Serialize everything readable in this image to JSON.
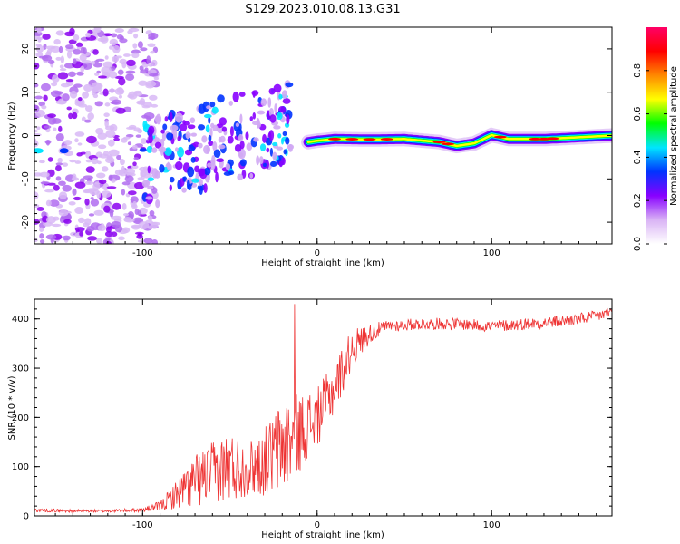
{
  "title": "S129.2023.010.08.13.G31",
  "chart_data": [
    {
      "type": "heatmap",
      "xlabel": "Height of straight line (km)",
      "ylabel": "Frequency (Hz)",
      "xlim": [
        -162,
        169
      ],
      "ylim": [
        -25,
        25
      ],
      "x_ticks": [
        -100,
        0,
        100
      ],
      "y_ticks": [
        -20,
        -10,
        0,
        10,
        20
      ],
      "colorbar": {
        "label": "Normalized spectral amplitude",
        "range": [
          0,
          1
        ],
        "ticks": [
          0.0,
          0.2,
          0.4,
          0.6,
          0.8
        ],
        "colormap": [
          "#ffffff",
          "#d9b3f5",
          "#8800ff",
          "#0033ff",
          "#00e5ff",
          "#00ff00",
          "#ffff00",
          "#ff8800",
          "#ff0000",
          "#ff0066"
        ]
      },
      "ridge": {
        "x": [
          -5,
          0,
          10,
          30,
          50,
          70,
          80,
          90,
          100,
          110,
          130,
          150,
          169
        ],
        "frequency": [
          -1.5,
          -1.2,
          -0.8,
          -0.9,
          -0.8,
          -1.5,
          -2.4,
          -1.8,
          0.1,
          -0.8,
          -0.8,
          -0.4,
          0.0
        ]
      }
    },
    {
      "type": "line",
      "xlabel": "Height of straight line (km)",
      "ylabel": "SNR (10 * v/v)",
      "xlim": [
        -162,
        169
      ],
      "ylim": [
        0,
        440
      ],
      "x_ticks": [
        -100,
        0,
        100
      ],
      "y_ticks": [
        0,
        100,
        200,
        300,
        400
      ],
      "color": "#ee3333",
      "x": [
        -162,
        -140,
        -120,
        -100,
        -90,
        -80,
        -70,
        -60,
        -50,
        -40,
        -30,
        -20,
        -10,
        0,
        10,
        20,
        30,
        40,
        60,
        80,
        100,
        120,
        140,
        160,
        169
      ],
      "y": [
        12,
        10,
        10,
        12,
        20,
        45,
        70,
        90,
        100,
        95,
        110,
        140,
        170,
        200,
        260,
        340,
        370,
        385,
        390,
        390,
        385,
        390,
        395,
        405,
        415
      ],
      "noise": [
        4,
        3,
        3,
        4,
        10,
        30,
        55,
        60,
        75,
        55,
        70,
        100,
        80,
        60,
        55,
        40,
        20,
        12,
        12,
        12,
        12,
        12,
        12,
        12,
        12
      ]
    }
  ]
}
